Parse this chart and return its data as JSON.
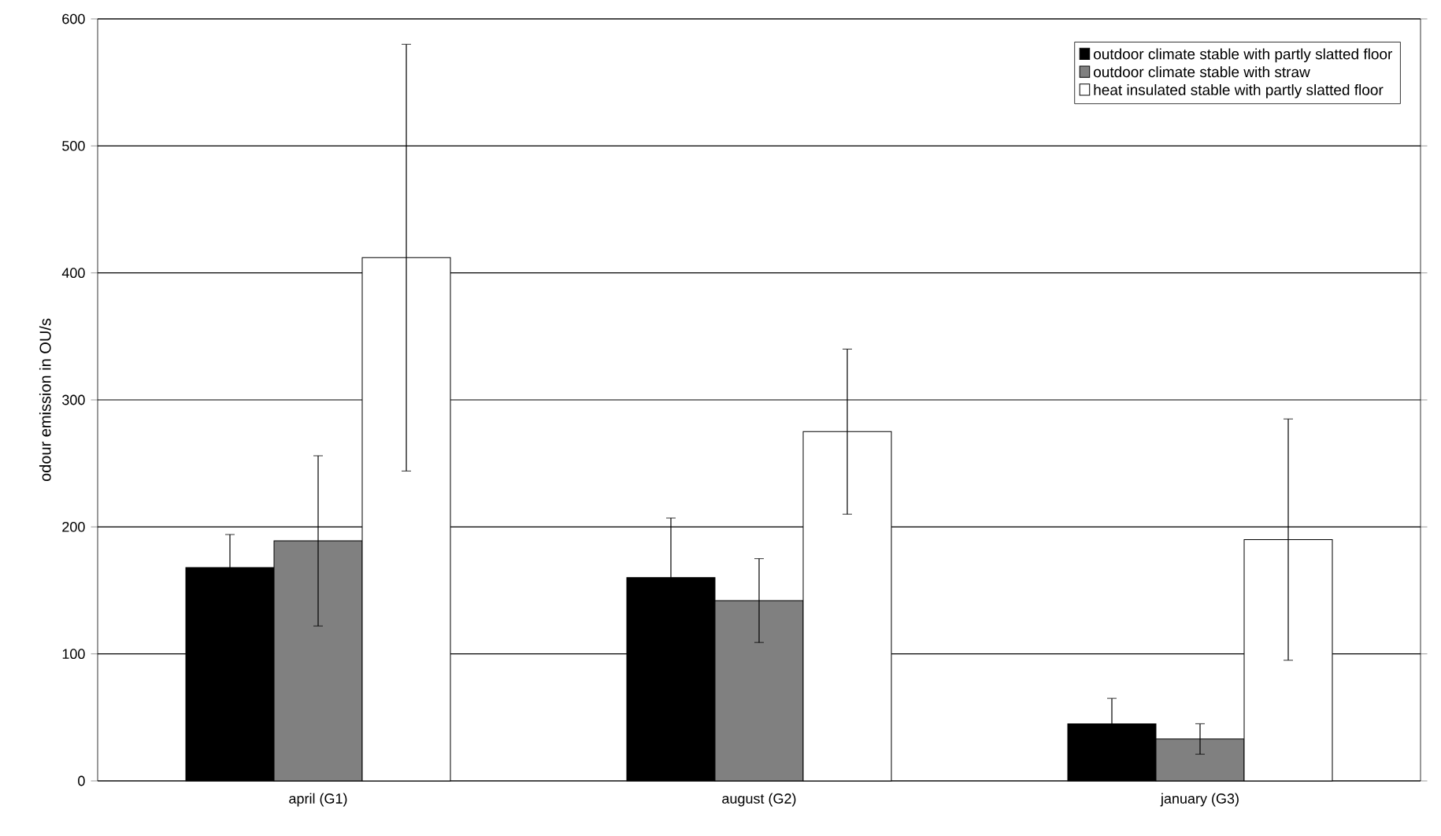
{
  "chart_data": {
    "type": "bar",
    "ylabel": "odour emission in OU/s",
    "categories": [
      "april (G1)",
      "august (G2)",
      "january (G3)"
    ],
    "series": [
      {
        "name": "outdoor climate stable with partly slatted floor",
        "color": "#000000",
        "values": [
          168,
          160,
          45
        ],
        "errors": [
          26,
          47,
          20
        ]
      },
      {
        "name": "outdoor climate stable with straw",
        "color": "#808080",
        "values": [
          189,
          142,
          33
        ],
        "errors": [
          67,
          33,
          12
        ]
      },
      {
        "name": "heat insulated stable with partly slatted floor",
        "color": "#ffffff",
        "values": [
          412,
          275,
          190
        ],
        "errors": [
          168,
          65,
          95
        ]
      }
    ],
    "ylim": [
      0,
      600
    ],
    "yticks": [
      0,
      100,
      200,
      300,
      400,
      500,
      600
    ],
    "grid": "y",
    "legend": "top right"
  }
}
